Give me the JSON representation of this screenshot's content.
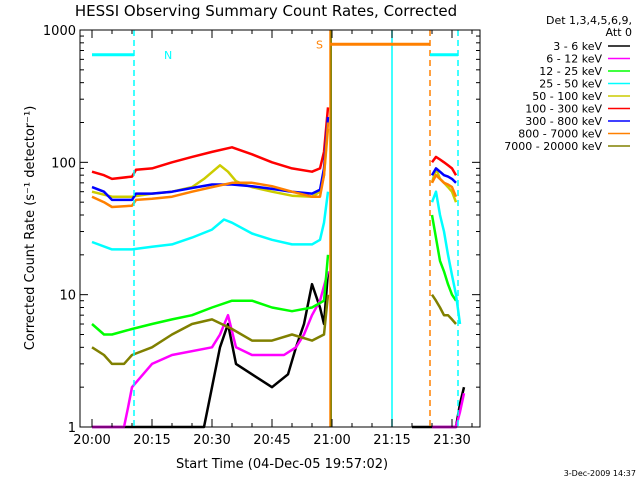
{
  "chart_data": {
    "type": "line",
    "title": "HESSI Observing Summary Count Rates, Corrected",
    "ylabel": "Corrected Count Rate (s⁻¹ detector⁻¹)",
    "xlabel": "Start Time (04-Dec-05 19:57:02)",
    "yscale": "log",
    "ylim": [
      1,
      1000
    ],
    "xlim_minutes_after_start": [
      -3,
      37
    ],
    "x_ticks": [
      "20:00",
      "20:15",
      "20:30",
      "20:45",
      "21:00",
      "21:15",
      "21:30"
    ],
    "x_tick_minutes": [
      0,
      15,
      30,
      45,
      60,
      75,
      90
    ],
    "y_ticks": [
      "1",
      "10",
      "100",
      "1000"
    ],
    "y_tick_values": [
      1,
      10,
      100,
      1000
    ],
    "detectors": "Det 1,3,4,5,6,9,",
    "attenuator": "Att 0",
    "footer_date": "3-Dec-2009 14:37",
    "flag_labels": [
      "N",
      "S"
    ],
    "series": [
      {
        "name": "3 - 6 keV",
        "color": "#000000",
        "x": [
          0,
          10,
          15,
          20,
          26,
          28,
          30,
          32,
          34,
          36,
          40,
          45,
          49,
          51,
          53,
          55,
          57,
          58,
          59,
          80,
          85,
          87,
          88,
          89,
          90,
          91,
          92,
          93
        ],
        "y": [
          1,
          1,
          1,
          1,
          1,
          1,
          2,
          4,
          6,
          3,
          2.5,
          2,
          2.5,
          4,
          6,
          12,
          8,
          6,
          15,
          1,
          1,
          1,
          1,
          1,
          1,
          1,
          1.5,
          2
        ]
      },
      {
        "name": "6 - 12 keV",
        "color": "#ff00ff",
        "x": [
          0,
          8,
          9,
          10,
          15,
          20,
          30,
          32,
          34,
          36,
          40,
          48,
          51,
          53,
          55,
          57,
          59,
          85,
          87,
          89,
          91,
          92,
          93
        ],
        "y": [
          1,
          1,
          1.4,
          2,
          3,
          3.5,
          4,
          5,
          7,
          4,
          3.5,
          3.5,
          4,
          5,
          7,
          9,
          15,
          1,
          1,
          1,
          1,
          1.3,
          1.8
        ]
      },
      {
        "name": "12 - 25 keV",
        "color": "#00ff00",
        "x": [
          0,
          3,
          5,
          10,
          15,
          20,
          25,
          30,
          35,
          40,
          45,
          50,
          55,
          58,
          59,
          85,
          87,
          88,
          89,
          90,
          91
        ],
        "y": [
          6,
          5,
          5,
          5.5,
          6,
          6.5,
          7,
          8,
          9,
          9,
          8,
          7.5,
          8,
          9,
          20,
          40,
          18,
          15,
          12,
          10,
          9
        ]
      },
      {
        "name": "25 - 50 keV",
        "color": "#00ffff",
        "x": [
          0,
          5,
          10,
          15,
          20,
          25,
          30,
          33,
          35,
          40,
          45,
          50,
          55,
          57,
          58,
          59,
          85,
          86,
          87,
          88,
          89,
          90,
          91,
          92
        ],
        "y": [
          25,
          22,
          22,
          23,
          24,
          27,
          31,
          37,
          35,
          29,
          26,
          24,
          24,
          26,
          35,
          60,
          50,
          60,
          40,
          30,
          20,
          14,
          10,
          6
        ]
      },
      {
        "name": "50 - 100 keV",
        "color": "#cccc00",
        "x": [
          0,
          5,
          10,
          15,
          20,
          25,
          28,
          32,
          34,
          36,
          38,
          40,
          45,
          50,
          55,
          57,
          58,
          59,
          85,
          86,
          87,
          88,
          89,
          90,
          91
        ],
        "y": [
          60,
          55,
          55,
          58,
          60,
          65,
          75,
          95,
          85,
          72,
          68,
          65,
          60,
          56,
          55,
          60,
          80,
          180,
          70,
          90,
          75,
          70,
          65,
          60,
          50
        ]
      },
      {
        "name": "100 - 300 keV",
        "color": "#ff0000",
        "x": [
          0,
          3,
          5,
          10,
          11,
          15,
          20,
          25,
          30,
          35,
          40,
          45,
          50,
          55,
          57,
          58,
          59,
          85,
          86,
          87,
          88,
          89,
          90,
          91
        ],
        "y": [
          85,
          80,
          75,
          78,
          88,
          90,
          100,
          110,
          120,
          130,
          115,
          100,
          90,
          85,
          90,
          120,
          260,
          100,
          110,
          105,
          100,
          95,
          90,
          80
        ]
      },
      {
        "name": "300 - 800 keV",
        "color": "#0000ff",
        "x": [
          0,
          3,
          5,
          10,
          11,
          15,
          20,
          25,
          30,
          35,
          40,
          45,
          50,
          55,
          57,
          58,
          59,
          85,
          86,
          87,
          88,
          89,
          90,
          91
        ],
        "y": [
          65,
          60,
          52,
          52,
          58,
          58,
          60,
          64,
          68,
          68,
          66,
          63,
          60,
          58,
          62,
          90,
          220,
          80,
          90,
          85,
          80,
          78,
          75,
          70
        ]
      },
      {
        "name": "800 - 7000 keV",
        "color": "#ff8000",
        "x": [
          0,
          3,
          5,
          10,
          11,
          15,
          20,
          25,
          30,
          35,
          40,
          45,
          50,
          55,
          57,
          58,
          59,
          85,
          86,
          87,
          88,
          89,
          90,
          91
        ],
        "y": [
          55,
          50,
          46,
          47,
          52,
          53,
          55,
          60,
          65,
          70,
          70,
          66,
          60,
          55,
          55,
          80,
          200,
          70,
          80,
          75,
          70,
          68,
          65,
          55
        ]
      },
      {
        "name": "7000 - 20000 keV",
        "color": "#808000",
        "x": [
          0,
          3,
          5,
          8,
          10,
          15,
          20,
          25,
          30,
          35,
          40,
          45,
          50,
          55,
          58,
          59,
          85,
          86,
          87,
          88,
          89,
          90,
          91
        ],
        "y": [
          4,
          3.5,
          3,
          3,
          3.5,
          4,
          5,
          6,
          6.5,
          5.5,
          4.5,
          4.5,
          5,
          4.5,
          5,
          10,
          10,
          9,
          8,
          7,
          7,
          6.5,
          6
        ]
      }
    ],
    "flags": [
      {
        "label": "N",
        "color": "#00ffff",
        "y": 650,
        "x_start": 0,
        "x_end": 10.5
      },
      {
        "label": "S",
        "color": "#ff8000",
        "y": 780,
        "x_start": 59.5,
        "x_end": 84.5
      },
      {
        "label": "",
        "color": "#00ffff",
        "y": 650,
        "x_start": 84.5,
        "x_end": 91.5
      }
    ],
    "vlines": [
      {
        "x": 10.5,
        "color": "#00ffff",
        "dashed": true
      },
      {
        "x": 59.5,
        "color": "#ff8000",
        "dashed": false
      },
      {
        "x": 59.8,
        "color": "#808000",
        "dashed": false
      },
      {
        "x": 75.0,
        "color": "#00ffff",
        "dashed": false
      },
      {
        "x": 84.5,
        "color": "#ff8000",
        "dashed": true
      },
      {
        "x": 91.5,
        "color": "#00ffff",
        "dashed": true
      }
    ]
  }
}
